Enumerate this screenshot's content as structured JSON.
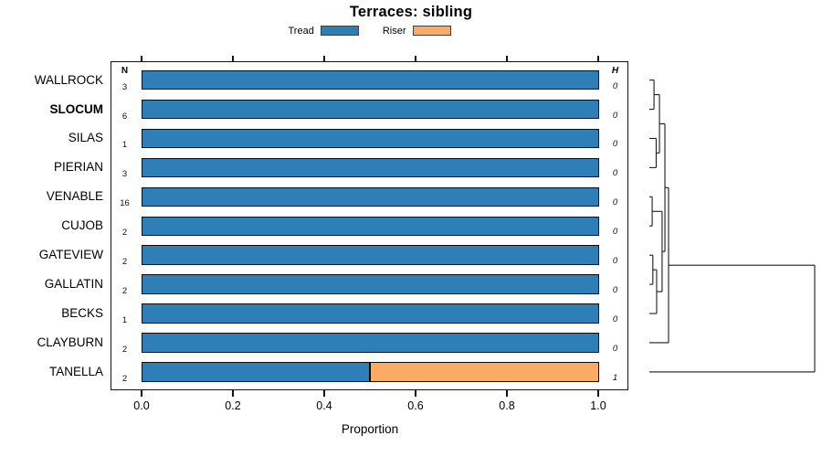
{
  "chart_data": {
    "type": "bar",
    "orientation": "horizontal",
    "stacked": true,
    "title": "Terraces: sibling",
    "xlabel": "Proportion",
    "xlim": [
      0,
      1
    ],
    "grid": false,
    "legend_position": "top-center",
    "xticks": [
      {
        "v": 0.0,
        "label": "0.0"
      },
      {
        "v": 0.2,
        "label": "0.2"
      },
      {
        "v": 0.4,
        "label": "0.4"
      },
      {
        "v": 0.6,
        "label": "0.6"
      },
      {
        "v": 0.8,
        "label": "0.8"
      },
      {
        "v": 1.0,
        "label": "1.0"
      }
    ],
    "columns": {
      "n_header": "N",
      "h_header": "H"
    },
    "legend": [
      {
        "label": "Tread",
        "color": "#2e7eb8"
      },
      {
        "label": "Riser",
        "color": "#fbab63"
      }
    ],
    "colors": {
      "tread": "#2e7eb8",
      "riser": "#fbab63",
      "bar_border": "#0a0a0a"
    },
    "categories": [
      "WALLROCK",
      "SLOCUM",
      "SILAS",
      "PIERIAN",
      "VENABLE",
      "CUJOB",
      "GATEVIEW",
      "GALLATIN",
      "BECKS",
      "CLAYBURN",
      "TANELLA"
    ],
    "rows": [
      {
        "label": "WALLROCK",
        "bold": false,
        "n": "3",
        "h": "0",
        "tread": 1.0,
        "riser": 0.0
      },
      {
        "label": "SLOCUM",
        "bold": true,
        "n": "6",
        "h": "0",
        "tread": 1.0,
        "riser": 0.0
      },
      {
        "label": "SILAS",
        "bold": false,
        "n": "1",
        "h": "0",
        "tread": 1.0,
        "riser": 0.0
      },
      {
        "label": "PIERIAN",
        "bold": false,
        "n": "3",
        "h": "0",
        "tread": 1.0,
        "riser": 0.0
      },
      {
        "label": "VENABLE",
        "bold": false,
        "n": "16",
        "h": "0",
        "tread": 1.0,
        "riser": 0.0
      },
      {
        "label": "CUJOB",
        "bold": false,
        "n": "2",
        "h": "0",
        "tread": 1.0,
        "riser": 0.0
      },
      {
        "label": "GATEVIEW",
        "bold": false,
        "n": "2",
        "h": "0",
        "tread": 1.0,
        "riser": 0.0
      },
      {
        "label": "GALLATIN",
        "bold": false,
        "n": "2",
        "h": "0",
        "tread": 1.0,
        "riser": 0.0
      },
      {
        "label": "BECKS",
        "bold": false,
        "n": "1",
        "h": "0",
        "tread": 1.0,
        "riser": 0.0
      },
      {
        "label": "CLAYBURN",
        "bold": false,
        "n": "2",
        "h": "0",
        "tread": 1.0,
        "riser": 0.0
      },
      {
        "label": "TANELLA",
        "bold": false,
        "n": "2",
        "h": "1",
        "tread": 0.5,
        "riser": 0.5
      }
    ],
    "dendrogram": {
      "h": 1.0,
      "children": [
        {
          "h": 0.116,
          "children": [
            {
              "h": 0.094,
              "children": [
                {
                  "h": 0.061,
                  "children": [
                    {
                      "h": 0.028,
                      "children": [
                        {
                          "leaf": "WALLROCK"
                        },
                        {
                          "leaf": "SLOCUM"
                        }
                      ]
                    },
                    {
                      "h": 0.041,
                      "children": [
                        {
                          "leaf": "SILAS"
                        },
                        {
                          "leaf": "PIERIAN"
                        }
                      ]
                    }
                  ]
                },
                {
                  "h": 0.077,
                  "children": [
                    {
                      "h": 0.017,
                      "children": [
                        {
                          "leaf": "VENABLE"
                        },
                        {
                          "leaf": "CUJOB"
                        }
                      ]
                    },
                    {
                      "h": 0.044,
                      "children": [
                        {
                          "h": 0.021,
                          "children": [
                            {
                              "leaf": "GATEVIEW"
                            },
                            {
                              "leaf": "GALLATIN"
                            }
                          ]
                        },
                        {
                          "leaf": "BECKS"
                        }
                      ]
                    }
                  ]
                }
              ]
            },
            {
              "leaf": "CLAYBURN"
            }
          ]
        },
        {
          "leaf": "TANELLA"
        }
      ]
    }
  }
}
